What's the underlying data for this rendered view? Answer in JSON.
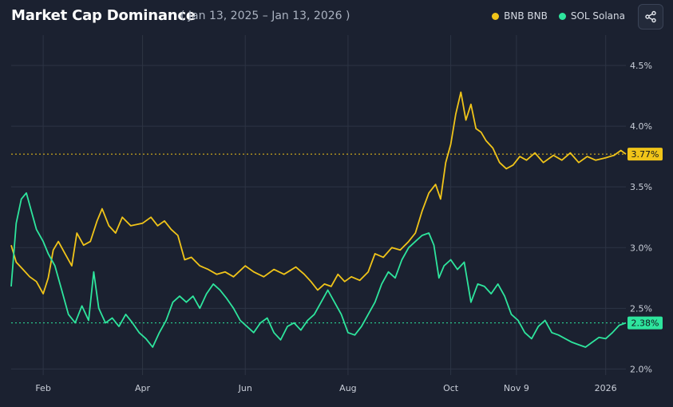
{
  "header": {
    "title": "Market Cap Dominance",
    "date_range": "( Jan 13, 2025 – Jan 13, 2026 )",
    "share_icon": "share-icon"
  },
  "colors": {
    "bnb": "#f0c419",
    "sol": "#2ee59d",
    "grid": "#2d3444",
    "background": "#1b2130"
  },
  "chart_data": {
    "type": "line",
    "title": "Market Cap Dominance",
    "xlabel": "",
    "ylabel": "",
    "x_range": [
      "2025-01-13",
      "2026-01-13"
    ],
    "ylim": [
      1.95,
      4.75
    ],
    "y_ticks": [
      {
        "value": 2.0,
        "label": "2.0%"
      },
      {
        "value": 2.5,
        "label": "2.5%"
      },
      {
        "value": 3.0,
        "label": "3.0%"
      },
      {
        "value": 3.5,
        "label": "3.5%"
      },
      {
        "value": 4.0,
        "label": "4.0%"
      },
      {
        "value": 4.5,
        "label": "4.5%"
      }
    ],
    "x_ticks": [
      {
        "date": "2025-02-01",
        "label": "Feb"
      },
      {
        "date": "2025-04-01",
        "label": "Apr"
      },
      {
        "date": "2025-06-01",
        "label": "Jun"
      },
      {
        "date": "2025-08-01",
        "label": "Aug"
      },
      {
        "date": "2025-10-01",
        "label": "Oct"
      },
      {
        "date": "2025-11-09",
        "label": "Nov 9"
      },
      {
        "date": "2026-01-01",
        "label": "2026"
      }
    ],
    "grid": true,
    "legend": "top-right",
    "series": [
      {
        "name": "BNB BNB",
        "color": "#f0c419",
        "last_value_label": "3.77%",
        "last_value": 3.77,
        "points": [
          [
            "2025-01-13",
            3.02
          ],
          [
            "2025-01-16",
            2.88
          ],
          [
            "2025-01-20",
            2.82
          ],
          [
            "2025-01-24",
            2.76
          ],
          [
            "2025-01-28",
            2.72
          ],
          [
            "2025-02-01",
            2.62
          ],
          [
            "2025-02-04",
            2.75
          ],
          [
            "2025-02-07",
            2.98
          ],
          [
            "2025-02-10",
            3.05
          ],
          [
            "2025-02-14",
            2.95
          ],
          [
            "2025-02-18",
            2.85
          ],
          [
            "2025-02-21",
            3.12
          ],
          [
            "2025-02-25",
            3.02
          ],
          [
            "2025-03-01",
            3.05
          ],
          [
            "2025-03-05",
            3.22
          ],
          [
            "2025-03-08",
            3.32
          ],
          [
            "2025-03-12",
            3.18
          ],
          [
            "2025-03-16",
            3.12
          ],
          [
            "2025-03-20",
            3.25
          ],
          [
            "2025-03-25",
            3.18
          ],
          [
            "2025-04-01",
            3.2
          ],
          [
            "2025-04-06",
            3.25
          ],
          [
            "2025-04-10",
            3.18
          ],
          [
            "2025-04-14",
            3.22
          ],
          [
            "2025-04-18",
            3.15
          ],
          [
            "2025-04-22",
            3.1
          ],
          [
            "2025-04-26",
            2.9
          ],
          [
            "2025-04-30",
            2.92
          ],
          [
            "2025-05-05",
            2.85
          ],
          [
            "2025-05-10",
            2.82
          ],
          [
            "2025-05-15",
            2.78
          ],
          [
            "2025-05-20",
            2.8
          ],
          [
            "2025-05-25",
            2.76
          ],
          [
            "2025-06-01",
            2.85
          ],
          [
            "2025-06-06",
            2.8
          ],
          [
            "2025-06-12",
            2.76
          ],
          [
            "2025-06-18",
            2.82
          ],
          [
            "2025-06-24",
            2.78
          ],
          [
            "2025-07-01",
            2.84
          ],
          [
            "2025-07-06",
            2.78
          ],
          [
            "2025-07-10",
            2.72
          ],
          [
            "2025-07-14",
            2.65
          ],
          [
            "2025-07-18",
            2.7
          ],
          [
            "2025-07-22",
            2.68
          ],
          [
            "2025-07-26",
            2.78
          ],
          [
            "2025-07-30",
            2.72
          ],
          [
            "2025-08-03",
            2.76
          ],
          [
            "2025-08-08",
            2.73
          ],
          [
            "2025-08-13",
            2.8
          ],
          [
            "2025-08-17",
            2.95
          ],
          [
            "2025-08-22",
            2.92
          ],
          [
            "2025-08-27",
            3.0
          ],
          [
            "2025-09-01",
            2.98
          ],
          [
            "2025-09-06",
            3.05
          ],
          [
            "2025-09-10",
            3.12
          ],
          [
            "2025-09-14",
            3.3
          ],
          [
            "2025-09-18",
            3.45
          ],
          [
            "2025-09-22",
            3.52
          ],
          [
            "2025-09-25",
            3.4
          ],
          [
            "2025-09-28",
            3.7
          ],
          [
            "2025-10-01",
            3.85
          ],
          [
            "2025-10-04",
            4.1
          ],
          [
            "2025-10-07",
            4.28
          ],
          [
            "2025-10-10",
            4.05
          ],
          [
            "2025-10-13",
            4.18
          ],
          [
            "2025-10-16",
            3.98
          ],
          [
            "2025-10-19",
            3.95
          ],
          [
            "2025-10-22",
            3.88
          ],
          [
            "2025-10-26",
            3.82
          ],
          [
            "2025-10-30",
            3.7
          ],
          [
            "2025-11-03",
            3.65
          ],
          [
            "2025-11-07",
            3.68
          ],
          [
            "2025-11-11",
            3.75
          ],
          [
            "2025-11-15",
            3.72
          ],
          [
            "2025-11-20",
            3.78
          ],
          [
            "2025-11-25",
            3.7
          ],
          [
            "2025-12-01",
            3.76
          ],
          [
            "2025-12-06",
            3.72
          ],
          [
            "2025-12-11",
            3.78
          ],
          [
            "2025-12-16",
            3.7
          ],
          [
            "2025-12-21",
            3.75
          ],
          [
            "2025-12-26",
            3.72
          ],
          [
            "2026-01-01",
            3.74
          ],
          [
            "2026-01-06",
            3.76
          ],
          [
            "2026-01-10",
            3.8
          ],
          [
            "2026-01-13",
            3.77
          ]
        ]
      },
      {
        "name": "SOL Solana",
        "color": "#2ee59d",
        "last_value_label": "2.38%",
        "last_value": 2.38,
        "points": [
          [
            "2025-01-13",
            2.68
          ],
          [
            "2025-01-16",
            3.2
          ],
          [
            "2025-01-19",
            3.4
          ],
          [
            "2025-01-22",
            3.45
          ],
          [
            "2025-01-25",
            3.3
          ],
          [
            "2025-01-28",
            3.15
          ],
          [
            "2025-02-01",
            3.05
          ],
          [
            "2025-02-04",
            2.95
          ],
          [
            "2025-02-08",
            2.85
          ],
          [
            "2025-02-12",
            2.65
          ],
          [
            "2025-02-16",
            2.45
          ],
          [
            "2025-02-20",
            2.38
          ],
          [
            "2025-02-24",
            2.52
          ],
          [
            "2025-02-28",
            2.4
          ],
          [
            "2025-03-03",
            2.8
          ],
          [
            "2025-03-06",
            2.5
          ],
          [
            "2025-03-10",
            2.38
          ],
          [
            "2025-03-14",
            2.42
          ],
          [
            "2025-03-18",
            2.35
          ],
          [
            "2025-03-22",
            2.45
          ],
          [
            "2025-03-26",
            2.38
          ],
          [
            "2025-03-30",
            2.3
          ],
          [
            "2025-04-03",
            2.25
          ],
          [
            "2025-04-07",
            2.18
          ],
          [
            "2025-04-11",
            2.3
          ],
          [
            "2025-04-15",
            2.4
          ],
          [
            "2025-04-19",
            2.55
          ],
          [
            "2025-04-23",
            2.6
          ],
          [
            "2025-04-27",
            2.55
          ],
          [
            "2025-05-01",
            2.6
          ],
          [
            "2025-05-05",
            2.5
          ],
          [
            "2025-05-09",
            2.62
          ],
          [
            "2025-05-13",
            2.7
          ],
          [
            "2025-05-17",
            2.65
          ],
          [
            "2025-05-21",
            2.58
          ],
          [
            "2025-05-25",
            2.5
          ],
          [
            "2025-05-29",
            2.4
          ],
          [
            "2025-06-02",
            2.35
          ],
          [
            "2025-06-06",
            2.3
          ],
          [
            "2025-06-10",
            2.38
          ],
          [
            "2025-06-14",
            2.42
          ],
          [
            "2025-06-18",
            2.3
          ],
          [
            "2025-06-22",
            2.24
          ],
          [
            "2025-06-26",
            2.35
          ],
          [
            "2025-06-30",
            2.38
          ],
          [
            "2025-07-04",
            2.32
          ],
          [
            "2025-07-08",
            2.4
          ],
          [
            "2025-07-12",
            2.45
          ],
          [
            "2025-07-16",
            2.55
          ],
          [
            "2025-07-20",
            2.65
          ],
          [
            "2025-07-24",
            2.55
          ],
          [
            "2025-07-28",
            2.45
          ],
          [
            "2025-08-01",
            2.3
          ],
          [
            "2025-08-05",
            2.28
          ],
          [
            "2025-08-09",
            2.35
          ],
          [
            "2025-08-13",
            2.45
          ],
          [
            "2025-08-17",
            2.55
          ],
          [
            "2025-08-21",
            2.7
          ],
          [
            "2025-08-25",
            2.8
          ],
          [
            "2025-08-29",
            2.75
          ],
          [
            "2025-09-02",
            2.9
          ],
          [
            "2025-09-06",
            3.0
          ],
          [
            "2025-09-10",
            3.05
          ],
          [
            "2025-09-14",
            3.1
          ],
          [
            "2025-09-18",
            3.12
          ],
          [
            "2025-09-21",
            3.02
          ],
          [
            "2025-09-24",
            2.75
          ],
          [
            "2025-09-27",
            2.85
          ],
          [
            "2025-10-01",
            2.9
          ],
          [
            "2025-10-05",
            2.82
          ],
          [
            "2025-10-09",
            2.88
          ],
          [
            "2025-10-13",
            2.55
          ],
          [
            "2025-10-17",
            2.7
          ],
          [
            "2025-10-21",
            2.68
          ],
          [
            "2025-10-25",
            2.62
          ],
          [
            "2025-10-29",
            2.7
          ],
          [
            "2025-11-02",
            2.6
          ],
          [
            "2025-11-06",
            2.45
          ],
          [
            "2025-11-10",
            2.4
          ],
          [
            "2025-11-14",
            2.3
          ],
          [
            "2025-11-18",
            2.25
          ],
          [
            "2025-11-22",
            2.35
          ],
          [
            "2025-11-26",
            2.4
          ],
          [
            "2025-11-30",
            2.3
          ],
          [
            "2025-12-04",
            2.28
          ],
          [
            "2025-12-08",
            2.25
          ],
          [
            "2025-12-12",
            2.22
          ],
          [
            "2025-12-16",
            2.2
          ],
          [
            "2025-12-20",
            2.18
          ],
          [
            "2025-12-24",
            2.22
          ],
          [
            "2025-12-28",
            2.26
          ],
          [
            "2026-01-01",
            2.25
          ],
          [
            "2026-01-05",
            2.3
          ],
          [
            "2026-01-09",
            2.36
          ],
          [
            "2026-01-13",
            2.38
          ]
        ]
      }
    ]
  }
}
